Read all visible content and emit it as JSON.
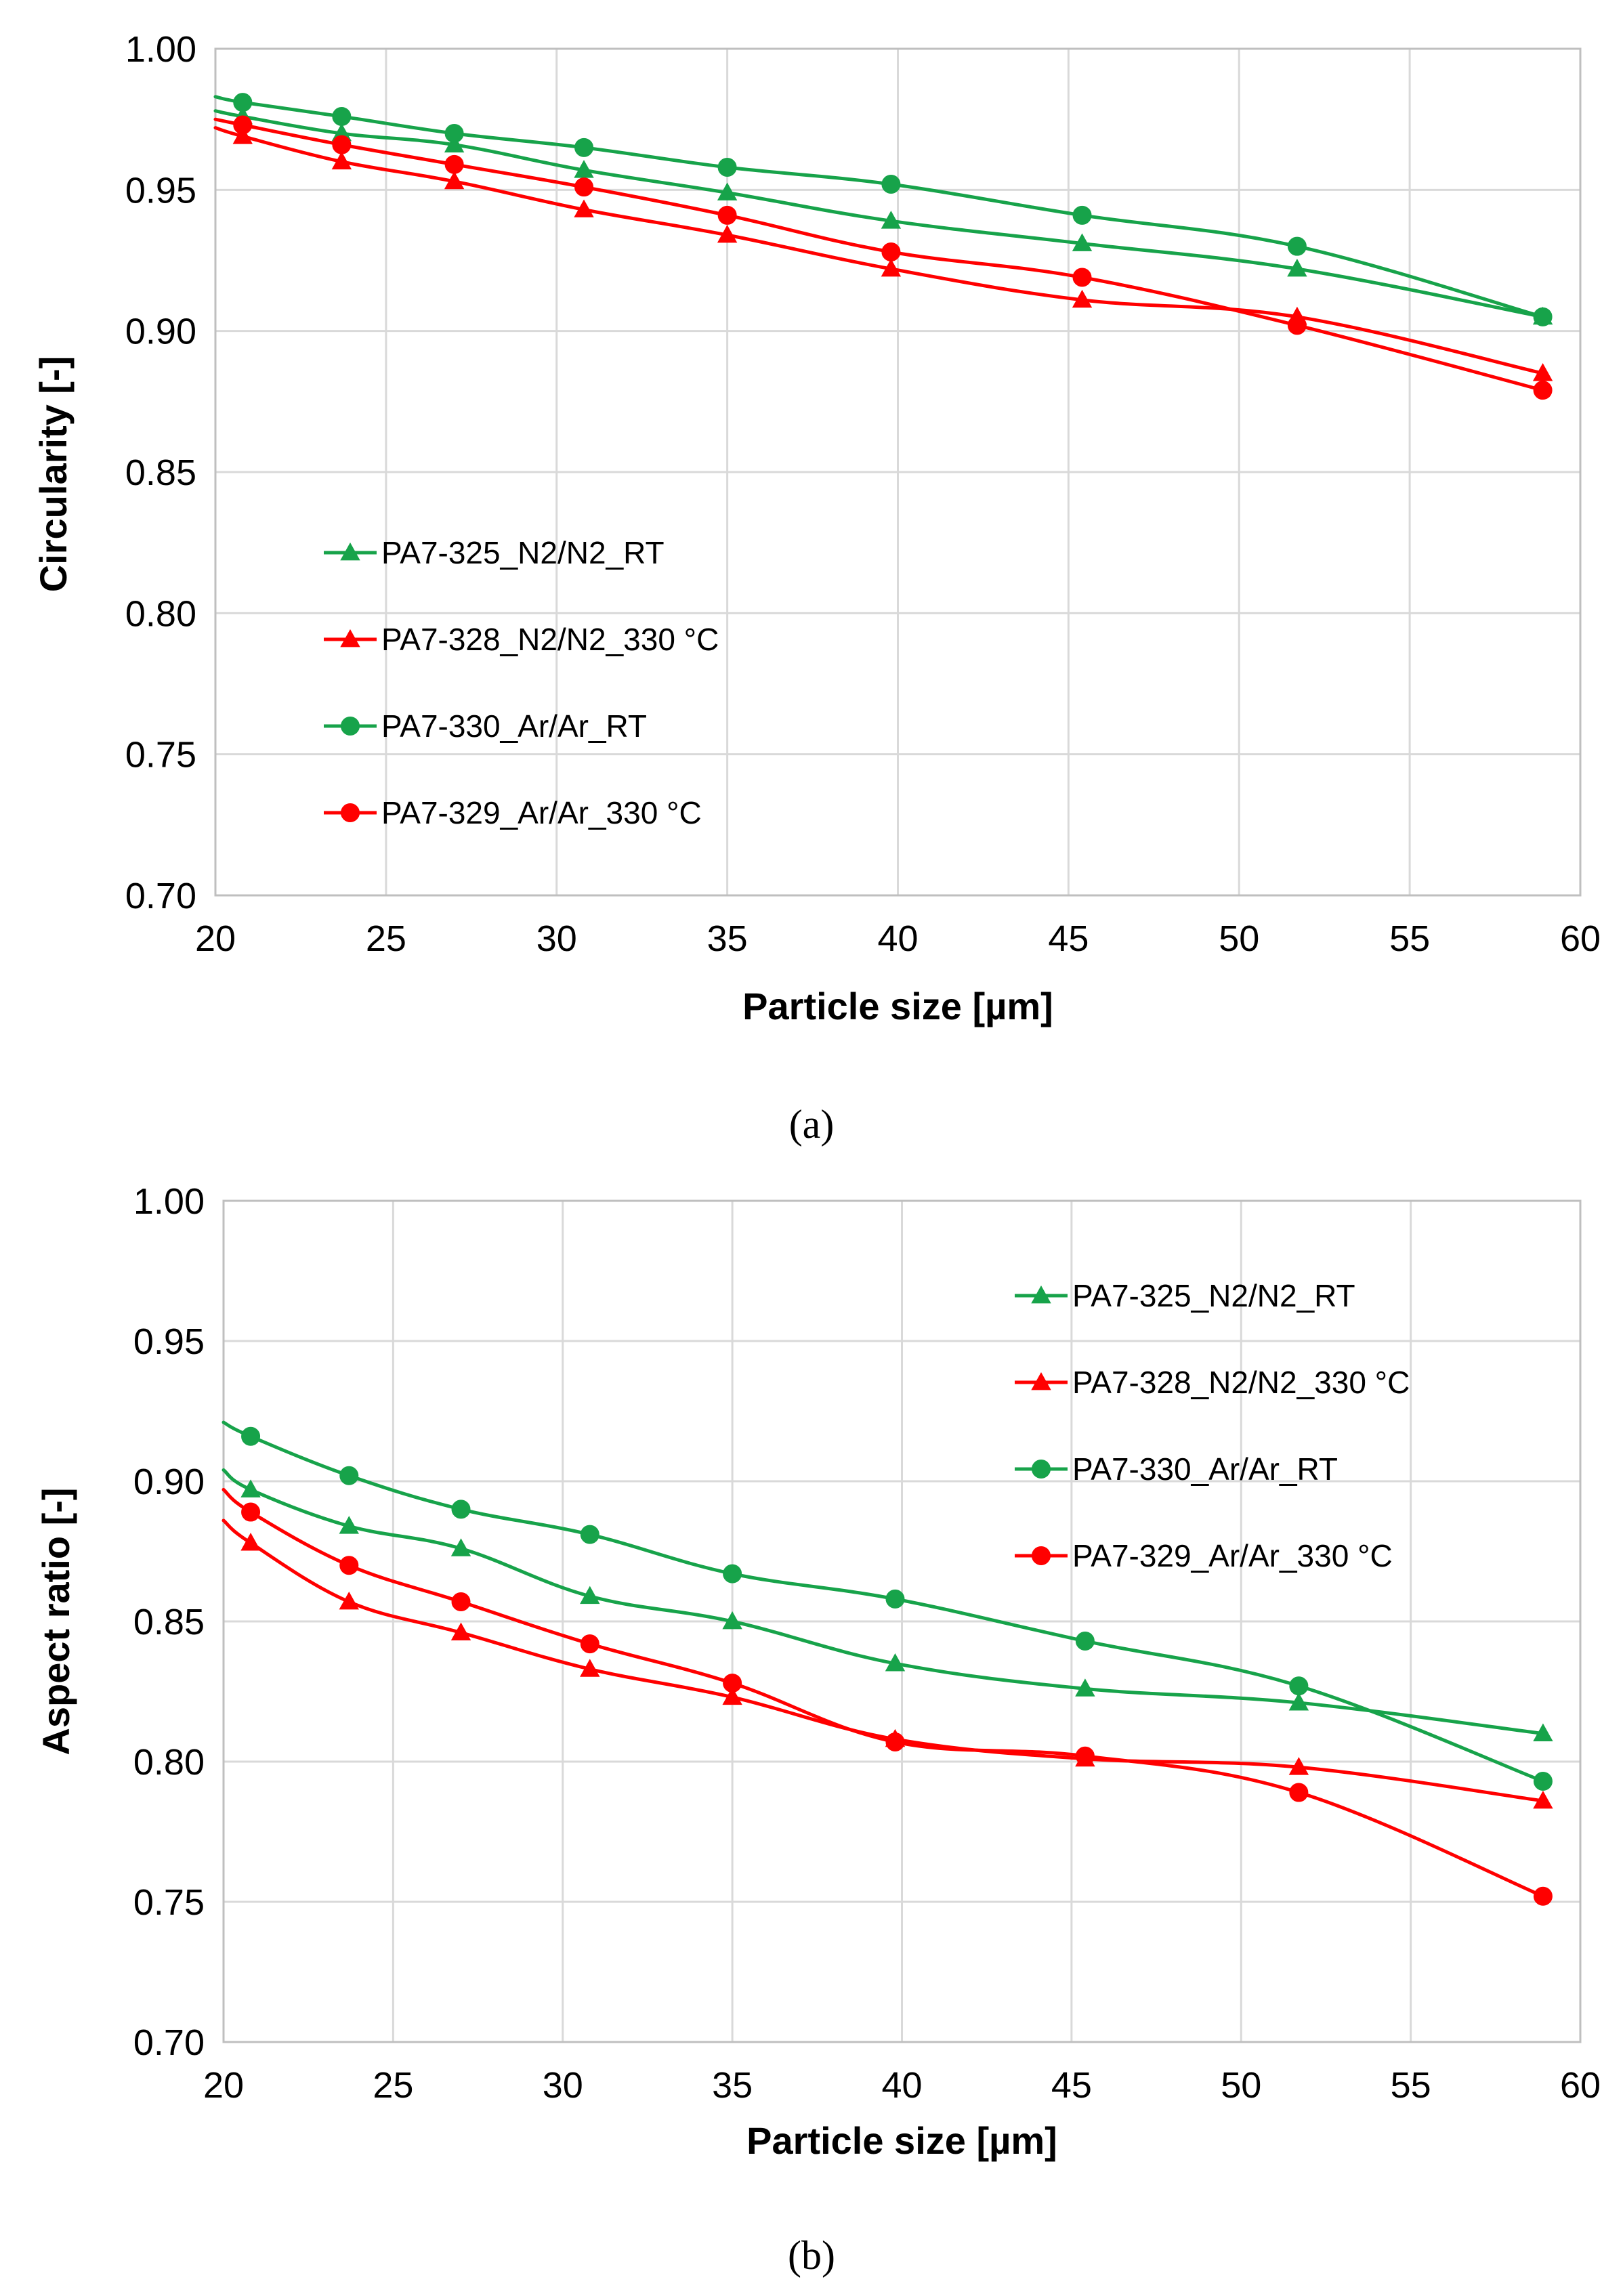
{
  "colors": {
    "green": "#17A34A",
    "red": "#FF0000"
  },
  "chart_data": [
    {
      "type": "line",
      "panel_id": "a",
      "caption": "(a)",
      "xlabel": "Particle size [µm]",
      "ylabel": "Circularity [-]",
      "xlim": [
        20,
        60
      ],
      "ylim": [
        0.7,
        1.0
      ],
      "xticks": [
        20,
        25,
        30,
        35,
        40,
        45,
        50,
        55,
        60
      ],
      "yticks": [
        "0.70",
        "0.75",
        "0.80",
        "0.85",
        "0.90",
        "0.95",
        "1.00"
      ],
      "grid": true,
      "legend_position": "center-left",
      "x": [
        20.8,
        23.7,
        27.0,
        30.8,
        35.0,
        39.8,
        45.4,
        51.7,
        58.9
      ],
      "series": [
        {
          "name": "PA7-325_N2/N2_RT",
          "marker": "triangle",
          "color": "#17A34A",
          "start": 0.978,
          "values": [
            0.976,
            0.97,
            0.966,
            0.957,
            0.949,
            0.939,
            0.931,
            0.922,
            0.905
          ]
        },
        {
          "name": "PA7-328_N2/N2_330 °C",
          "marker": "triangle",
          "color": "#FF0000",
          "start": 0.972,
          "values": [
            0.969,
            0.96,
            0.953,
            0.943,
            0.934,
            0.922,
            0.911,
            0.905,
            0.885
          ]
        },
        {
          "name": "PA7-330_Ar/Ar_RT",
          "marker": "circle",
          "color": "#17A34A",
          "start": 0.983,
          "values": [
            0.981,
            0.976,
            0.97,
            0.965,
            0.958,
            0.952,
            0.941,
            0.93,
            0.905
          ]
        },
        {
          "name": "PA7-329_Ar/Ar_330 °C",
          "marker": "circle",
          "color": "#FF0000",
          "start": 0.975,
          "values": [
            0.973,
            0.966,
            0.959,
            0.951,
            0.941,
            0.928,
            0.919,
            0.902,
            0.879
          ]
        }
      ]
    },
    {
      "type": "line",
      "panel_id": "b",
      "caption": "(b)",
      "xlabel": "Particle size [µm]",
      "ylabel": "Aspect ratio [-]",
      "xlim": [
        20,
        60
      ],
      "ylim": [
        0.7,
        1.0
      ],
      "xticks": [
        20,
        25,
        30,
        35,
        40,
        45,
        50,
        55,
        60
      ],
      "yticks": [
        "0.70",
        "0.75",
        "0.80",
        "0.85",
        "0.90",
        "0.95",
        "1.00"
      ],
      "grid": true,
      "legend_position": "top-right",
      "x": [
        20.8,
        23.7,
        27.0,
        30.8,
        35.0,
        39.8,
        45.4,
        51.7,
        58.9
      ],
      "series": [
        {
          "name": "PA7-325_N2/N2_RT",
          "marker": "triangle",
          "color": "#17A34A",
          "start": 0.904,
          "values": [
            0.897,
            0.884,
            0.876,
            0.859,
            0.85,
            0.835,
            0.826,
            0.821,
            0.81
          ]
        },
        {
          "name": "PA7-328_N2/N2_330 °C",
          "marker": "triangle",
          "color": "#FF0000",
          "start": 0.886,
          "values": [
            0.878,
            0.857,
            0.846,
            0.833,
            0.823,
            0.808,
            0.801,
            0.798,
            0.786
          ]
        },
        {
          "name": "PA7-330_Ar/Ar_RT",
          "marker": "circle",
          "color": "#17A34A",
          "start": 0.921,
          "values": [
            0.916,
            0.902,
            0.89,
            0.881,
            0.867,
            0.858,
            0.843,
            0.827,
            0.793
          ]
        },
        {
          "name": "PA7-329_Ar/Ar_330 °C",
          "marker": "circle",
          "color": "#FF0000",
          "start": 0.897,
          "values": [
            0.889,
            0.87,
            0.857,
            0.842,
            0.828,
            0.807,
            0.802,
            0.789,
            0.752
          ]
        }
      ]
    }
  ]
}
